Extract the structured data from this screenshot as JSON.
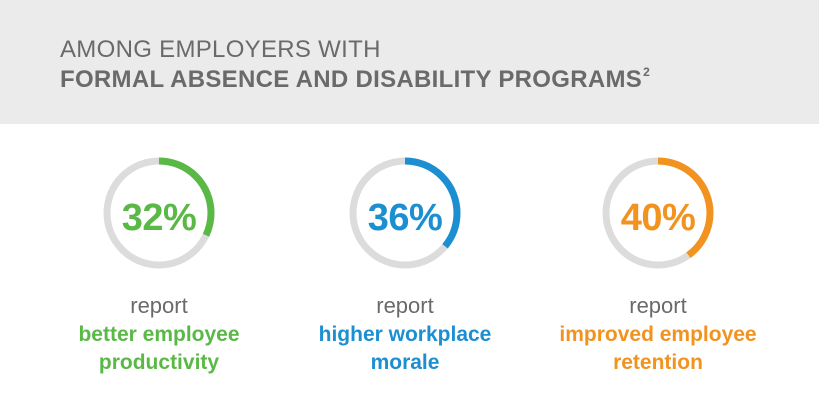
{
  "header": {
    "line1": "AMONG EMPLOYERS WITH",
    "line2": "FORMAL ABSENCE AND DISABILITY PROGRAMS",
    "footnote": "2"
  },
  "track_color": "#dcdcdc",
  "stats": [
    {
      "percent_label": "32%",
      "value": 32,
      "color": "#5ab946",
      "report": "report",
      "desc_line1": "better employee",
      "desc_line2": "productivity"
    },
    {
      "percent_label": "36%",
      "value": 36,
      "color": "#1b8fd2",
      "report": "report",
      "desc_line1": "higher workplace",
      "desc_line2": "morale"
    },
    {
      "percent_label": "40%",
      "value": 40,
      "color": "#f2921f",
      "report": "report",
      "desc_line1": "improved employee",
      "desc_line2": "retention"
    }
  ]
}
